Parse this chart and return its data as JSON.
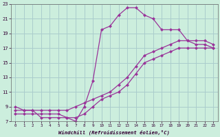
{
  "xlabel": "Windchill (Refroidissement éolien,°C)",
  "background_color": "#cceedd",
  "grid_color": "#aacccc",
  "line_color": "#993399",
  "xlim": [
    -0.5,
    23.5
  ],
  "ylim": [
    7,
    23
  ],
  "xticks": [
    0,
    1,
    2,
    3,
    4,
    5,
    6,
    7,
    8,
    9,
    10,
    11,
    12,
    13,
    14,
    15,
    16,
    17,
    18,
    19,
    20,
    21,
    22,
    23
  ],
  "yticks": [
    7,
    9,
    11,
    13,
    15,
    17,
    19,
    21,
    23
  ],
  "series1_x": [
    0,
    1,
    2,
    3,
    4,
    5,
    6,
    7,
    8,
    9,
    10,
    11,
    12,
    13,
    14,
    15,
    16,
    17,
    18,
    19,
    20,
    21,
    22,
    23
  ],
  "series1_y": [
    9,
    8.5,
    8.5,
    7.5,
    7.5,
    7.5,
    7.5,
    7,
    9,
    12.5,
    19.5,
    20,
    21.5,
    22.5,
    22.5,
    21.5,
    21,
    19.5,
    19.5,
    19.5,
    18,
    17.5,
    17.5,
    17
  ],
  "series2_x": [
    0,
    1,
    2,
    3,
    4,
    5,
    6,
    7,
    8,
    9,
    10,
    11,
    12,
    13,
    14,
    15,
    16,
    17,
    18,
    19,
    20,
    21,
    22,
    23
  ],
  "series2_y": [
    8.5,
    8.5,
    8.5,
    8.5,
    8.5,
    8.5,
    8.5,
    9,
    9.5,
    10,
    10.5,
    11,
    12,
    13,
    14.5,
    16,
    16.5,
    17,
    17.5,
    18,
    18,
    18,
    18,
    17.5
  ],
  "series3_x": [
    0,
    1,
    2,
    3,
    4,
    5,
    6,
    7,
    8,
    9,
    10,
    11,
    12,
    13,
    14,
    15,
    16,
    17,
    18,
    19,
    20,
    21,
    22,
    23
  ],
  "series3_y": [
    8,
    8,
    8,
    8,
    8,
    8,
    7.5,
    7.5,
    8,
    9,
    10,
    10.5,
    11,
    12,
    13.5,
    15,
    15.5,
    16,
    16.5,
    17,
    17,
    17,
    17,
    17
  ]
}
